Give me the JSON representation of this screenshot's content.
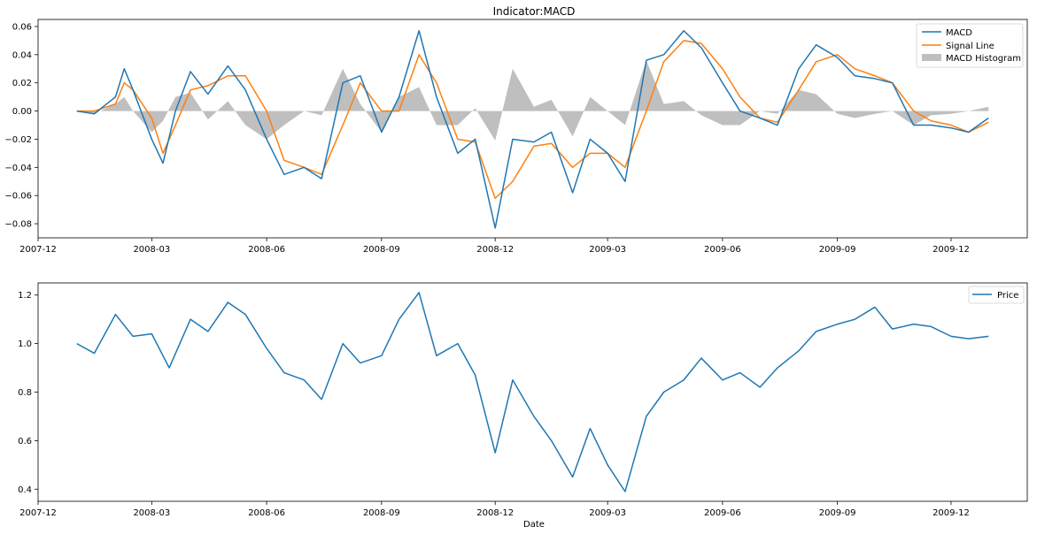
{
  "chart_data": [
    {
      "type": "line",
      "title": "Indicator:MACD",
      "xlabel": "",
      "ylabel": "",
      "x_ticks": [
        "2007-12",
        "2008-03",
        "2008-06",
        "2008-09",
        "2008-12",
        "2009-03",
        "2009-06",
        "2009-09",
        "2009-12"
      ],
      "y_ticks": [
        "0.06",
        "0.04",
        "0.02",
        "0.00",
        "−0.02",
        "−0.04",
        "−0.06",
        "−0.08"
      ],
      "ylim": [
        -0.09,
        0.065
      ],
      "xlim": [
        "2007-12-01",
        "2010-01-31"
      ],
      "grid": false,
      "legend": "top-right",
      "colors": {
        "macd": "#1f77b4",
        "signal": "#ff7f0e",
        "histogram": "#bfbfbf"
      },
      "x": [
        "2008-01-01",
        "2008-01-15",
        "2008-02-01",
        "2008-02-08",
        "2008-02-15",
        "2008-03-01",
        "2008-03-10",
        "2008-03-20",
        "2008-04-01",
        "2008-04-15",
        "2008-05-01",
        "2008-05-15",
        "2008-06-01",
        "2008-06-15",
        "2008-07-01",
        "2008-07-15",
        "2008-08-01",
        "2008-08-15",
        "2008-09-01",
        "2008-09-15",
        "2008-10-01",
        "2008-10-15",
        "2008-11-01",
        "2008-11-15",
        "2008-12-01",
        "2008-12-15",
        "2009-01-01",
        "2009-01-15",
        "2009-02-01",
        "2009-02-15",
        "2009-03-01",
        "2009-03-15",
        "2009-04-01",
        "2009-04-15",
        "2009-05-01",
        "2009-05-15",
        "2009-06-01",
        "2009-06-15",
        "2009-07-01",
        "2009-07-15",
        "2009-08-01",
        "2009-08-15",
        "2009-09-01",
        "2009-09-15",
        "2009-10-01",
        "2009-10-15",
        "2009-11-01",
        "2009-11-15",
        "2009-12-01",
        "2009-12-15",
        "2009-12-31"
      ],
      "series": [
        {
          "name": "MACD",
          "values": [
            0.0,
            -0.002,
            0.01,
            0.03,
            0.015,
            -0.02,
            -0.037,
            0.0,
            0.028,
            0.012,
            0.032,
            0.015,
            -0.02,
            -0.045,
            -0.04,
            -0.048,
            0.02,
            0.025,
            -0.015,
            0.01,
            0.057,
            0.01,
            -0.03,
            -0.02,
            -0.083,
            -0.02,
            -0.022,
            -0.015,
            -0.058,
            -0.02,
            -0.03,
            -0.05,
            0.036,
            0.04,
            0.057,
            0.045,
            0.02,
            0.0,
            -0.005,
            -0.01,
            0.03,
            0.047,
            0.038,
            0.025,
            0.023,
            0.02,
            -0.01,
            -0.01,
            -0.012,
            -0.015,
            -0.005
          ]
        },
        {
          "name": "Signal Line",
          "values": [
            0.0,
            0.0,
            0.005,
            0.02,
            0.015,
            -0.005,
            -0.03,
            -0.01,
            0.015,
            0.018,
            0.025,
            0.025,
            0.0,
            -0.035,
            -0.04,
            -0.045,
            -0.01,
            0.02,
            0.0,
            0.0,
            0.04,
            0.02,
            -0.02,
            -0.022,
            -0.062,
            -0.05,
            -0.025,
            -0.023,
            -0.04,
            -0.03,
            -0.03,
            -0.04,
            0.0,
            0.035,
            0.05,
            0.048,
            0.03,
            0.01,
            -0.005,
            -0.008,
            0.015,
            0.035,
            0.04,
            0.03,
            0.025,
            0.02,
            0.0,
            -0.007,
            -0.01,
            -0.015,
            -0.008
          ]
        },
        {
          "name": "MACD Histogram",
          "values": [
            0.0,
            -0.002,
            0.005,
            0.01,
            0.0,
            -0.015,
            -0.007,
            0.01,
            0.013,
            -0.006,
            0.007,
            -0.01,
            -0.02,
            -0.01,
            0.0,
            -0.003,
            0.03,
            0.005,
            -0.015,
            0.01,
            0.017,
            -0.01,
            -0.01,
            0.002,
            -0.021,
            0.03,
            0.003,
            0.008,
            -0.018,
            0.01,
            0.0,
            -0.01,
            0.036,
            0.005,
            0.007,
            -0.003,
            -0.01,
            -0.01,
            0.0,
            -0.002,
            0.015,
            0.012,
            -0.002,
            -0.005,
            -0.002,
            0.0,
            -0.01,
            -0.003,
            -0.002,
            0.0,
            0.003
          ]
        }
      ]
    },
    {
      "type": "line",
      "title": "",
      "xlabel": "Date",
      "ylabel": "",
      "x_ticks": [
        "2007-12",
        "2008-03",
        "2008-06",
        "2008-09",
        "2008-12",
        "2009-03",
        "2009-06",
        "2009-09",
        "2009-12"
      ],
      "y_ticks": [
        "1.2",
        "1.0",
        "0.8",
        "0.6",
        "0.4"
      ],
      "ylim": [
        0.35,
        1.25
      ],
      "xlim": [
        "2007-12-01",
        "2010-01-31"
      ],
      "grid": false,
      "legend": "top-right",
      "colors": {
        "price": "#1f77b4"
      },
      "x": [
        "2008-01-01",
        "2008-01-15",
        "2008-02-01",
        "2008-02-15",
        "2008-03-01",
        "2008-03-15",
        "2008-04-01",
        "2008-04-15",
        "2008-05-01",
        "2008-05-15",
        "2008-06-01",
        "2008-06-15",
        "2008-07-01",
        "2008-07-15",
        "2008-08-01",
        "2008-08-15",
        "2008-09-01",
        "2008-09-15",
        "2008-10-01",
        "2008-10-15",
        "2008-11-01",
        "2008-11-15",
        "2008-12-01",
        "2008-12-15",
        "2009-01-01",
        "2009-01-15",
        "2009-02-01",
        "2009-02-15",
        "2009-03-01",
        "2009-03-15",
        "2009-04-01",
        "2009-04-15",
        "2009-05-01",
        "2009-05-15",
        "2009-06-01",
        "2009-06-15",
        "2009-07-01",
        "2009-07-15",
        "2009-08-01",
        "2009-08-15",
        "2009-09-01",
        "2009-09-15",
        "2009-10-01",
        "2009-10-15",
        "2009-11-01",
        "2009-11-15",
        "2009-12-01",
        "2009-12-15",
        "2009-12-31"
      ],
      "series": [
        {
          "name": "Price",
          "values": [
            1.0,
            0.96,
            1.12,
            1.03,
            1.04,
            0.9,
            1.1,
            1.05,
            1.17,
            1.12,
            0.98,
            0.88,
            0.85,
            0.77,
            1.0,
            0.92,
            0.95,
            1.1,
            1.21,
            0.95,
            1.0,
            0.87,
            0.55,
            0.85,
            0.7,
            0.6,
            0.45,
            0.65,
            0.5,
            0.39,
            0.7,
            0.8,
            0.85,
            0.94,
            0.85,
            0.88,
            0.82,
            0.9,
            0.97,
            1.05,
            1.08,
            1.1,
            1.15,
            1.06,
            1.08,
            1.07,
            1.03,
            1.02,
            1.03
          ]
        }
      ]
    }
  ]
}
